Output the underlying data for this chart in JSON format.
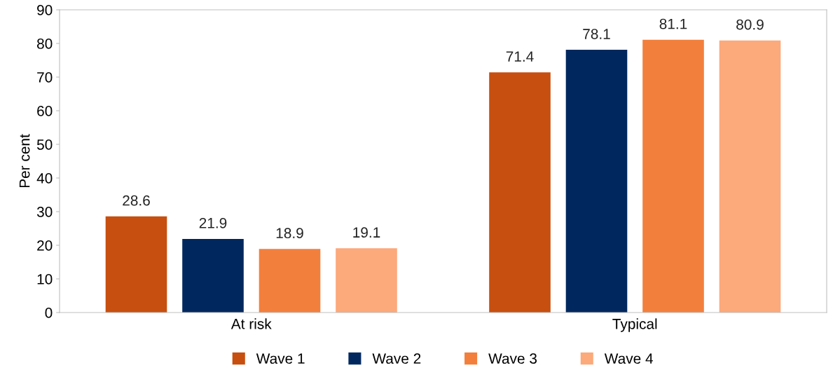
{
  "chart_data": {
    "type": "bar",
    "ylabel": "Per cent",
    "categories": [
      "At risk",
      "Typical"
    ],
    "series": [
      {
        "name": "Wave 1",
        "color": "#c74f0f",
        "values": [
          28.6,
          71.4
        ]
      },
      {
        "name": "Wave 2",
        "color": "#00285e",
        "values": [
          21.9,
          78.1
        ]
      },
      {
        "name": "Wave 3",
        "color": "#f37f3d",
        "values": [
          18.9,
          81.1
        ]
      },
      {
        "name": "Wave 4",
        "color": "#fca97b",
        "values": [
          19.1,
          80.9
        ]
      }
    ],
    "ylim": [
      0,
      90
    ],
    "yticks": [
      0,
      10,
      20,
      30,
      40,
      50,
      60,
      70,
      80,
      90
    ],
    "data_labels": true,
    "grid": false,
    "legend": "bottom"
  }
}
